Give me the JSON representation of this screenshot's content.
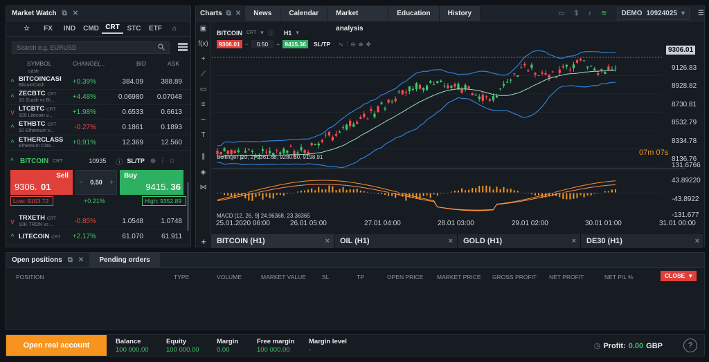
{
  "market_watch": {
    "title": "Market Watch",
    "tabs": [
      "☆",
      "FX",
      "IND",
      "CMD",
      "CRT",
      "STC",
      "ETF"
    ],
    "search_placeholder": "Search e.g. EURUSD",
    "headers": [
      "SYMBOL",
      "CHANGE(...",
      "BID",
      "ASK"
    ],
    "rows_top": [
      {
        "symbol": "BITCOINCASI",
        "desc": "BitcoinCash",
        "change": "+0.39%",
        "bid": "384.09",
        "ask": "388.89",
        "dir": "up"
      },
      {
        "symbol": "ZECBTC",
        "badge": "CRT",
        "desc": "10 Zcash vs Bi...",
        "change": "+4.48%",
        "bid": "0.06980",
        "ask": "0.07048",
        "dir": "up"
      },
      {
        "symbol": "LTCBTC",
        "badge": "CRT",
        "desc": "100 Litecoin v...",
        "change": "+1.98%",
        "bid": "0.6533",
        "ask": "0.6613",
        "dir": "down"
      },
      {
        "symbol": "ETHBTC",
        "badge": "CRT",
        "desc": "10 Ethereum v...",
        "change": "-0.27%",
        "bid": "0.1861",
        "ask": "0.1893",
        "dir": "up"
      },
      {
        "symbol": "ETHERCLASS",
        "desc": "Ethereum Clas...",
        "change": "+0.91%",
        "bid": "12.369",
        "ask": "12.560",
        "dir": "up"
      }
    ],
    "cut_label": "cash",
    "selected": {
      "symbol": "BITCOIN",
      "badge": "CRT",
      "volume": "10935",
      "sltp": "SL/TP",
      "sell_label": "Sell",
      "sell_price_main": "9306.",
      "sell_price_big": "01",
      "buy_label": "Buy",
      "buy_price_main": "9415.",
      "buy_price_big": "36",
      "lot": "0.50",
      "minus": "−",
      "plus": "+",
      "low": "Low: 9153.72",
      "high": "High: 9352.89",
      "change": "+0.21%"
    },
    "rows_bottom": [
      {
        "symbol": "TRXETH",
        "badge": "CRT",
        "desc": "10K TRON vs ...",
        "change": "-0.85%",
        "bid": "1.0548",
        "ask": "1.0748",
        "dir": "down"
      },
      {
        "symbol": "LITECOIN",
        "badge": "CRT",
        "desc": "",
        "change": "+2.17%",
        "bid": "61.070",
        "ask": "61.911",
        "dir": "up"
      }
    ]
  },
  "charts": {
    "label": "Charts",
    "tabs": [
      "News",
      "Calendar",
      "Market analysis",
      "Education",
      "History"
    ],
    "account_mode": "DEMO",
    "account_id": "10924025",
    "instrument": "BITCOIN",
    "instrument_badge": "CRT",
    "timeframe": "H1",
    "sell_price": "9306.01",
    "buy_price": "9415.36",
    "lot": "0.50",
    "sltp": "SL/TP",
    "minus": "−",
    "price_labels": [
      "9306.01",
      "9126.83",
      "8928.82",
      "8730.81",
      "8532.79",
      "8334.78",
      "8136.76"
    ],
    "osc_labels": [
      "131.6766",
      "43.89220",
      "-43.8922",
      "-131.677"
    ],
    "date_labels": [
      "25.01.2020 06:00",
      "26.01 05:00",
      "27.01 04:00",
      "28.01 03:00",
      "29.01 02:00",
      "30.01 01:00",
      "31.01 00:00"
    ],
    "countdown": "07m 07s",
    "bollinger_label": "Bollinger [20, 2] 9361.68, 9280.30, 9198.91",
    "macd_label": "MACD [12, 26, 9] 24.96368, 23.36365",
    "bottom_tabs": [
      "BITCOIN (H1)",
      "OIL (H1)",
      "GOLD (H1)",
      "DE30 (H1)"
    ],
    "close_x": "×",
    "add": "+"
  },
  "positions": {
    "tabs": [
      "Open positions",
      "Pending orders"
    ],
    "headers": [
      "POSITION",
      "TYPE",
      "VOLUME",
      "MARKET VALUE",
      "SL",
      "TP",
      "OPEN PRICE",
      "MARKET PRICE",
      "GROSS PROFIT",
      "NET PROFIT",
      "NET P/L %"
    ],
    "close_label": "CLOSE"
  },
  "footer": {
    "cta": "Open real account",
    "items": [
      {
        "label": "Balance",
        "value": "100 000.00"
      },
      {
        "label": "Equity",
        "value": "100 000.00"
      },
      {
        "label": "Margin",
        "value": "0.00"
      },
      {
        "label": "Free margin",
        "value": "100 000.00"
      },
      {
        "label": "Margin level",
        "value": "-"
      }
    ],
    "profit_label": "Profit:",
    "profit_value": "0.00",
    "currency": "GBP",
    "help": "?"
  }
}
